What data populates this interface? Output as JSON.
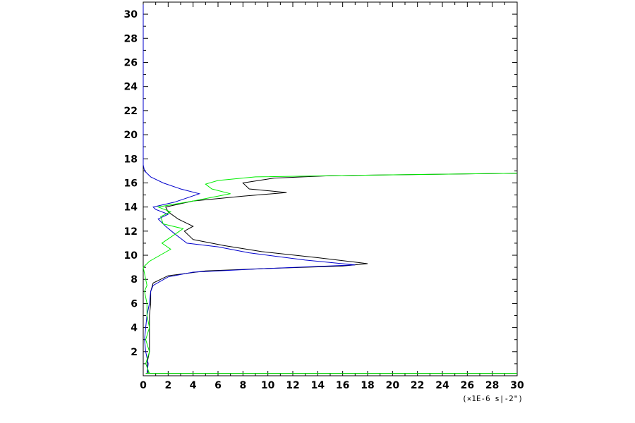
{
  "chart_data": {
    "type": "line",
    "title": "",
    "xlabel": "",
    "ylabel": "",
    "x_unit_note": "(×1E-6 s|-2\")",
    "xlim": [
      0,
      30
    ],
    "ylim": [
      0,
      31
    ],
    "x_ticks": [
      0,
      2,
      4,
      6,
      8,
      10,
      12,
      14,
      16,
      18,
      20,
      22,
      24,
      26,
      28,
      30
    ],
    "y_ticks": [
      2,
      4,
      6,
      8,
      10,
      12,
      14,
      16,
      18,
      20,
      22,
      24,
      26,
      28,
      30
    ],
    "grid": false,
    "legend": "none",
    "series": [
      {
        "color": "#000000",
        "points": [
          [
            0.2,
            0.2
          ],
          [
            30,
            0.2
          ],
          [
            0.4,
            0.2
          ],
          [
            0.3,
            1.0
          ],
          [
            0.5,
            2.0
          ],
          [
            0.5,
            3.0
          ],
          [
            0.5,
            4.0
          ],
          [
            0.5,
            5.0
          ],
          [
            0.6,
            6.0
          ],
          [
            0.6,
            7.0
          ],
          [
            0.8,
            7.7
          ],
          [
            2.0,
            8.3
          ],
          [
            5.0,
            8.7
          ],
          [
            10.0,
            8.9
          ],
          [
            16.0,
            9.1
          ],
          [
            18.0,
            9.3
          ],
          [
            14.0,
            9.8
          ],
          [
            9.5,
            10.3
          ],
          [
            6.5,
            10.8
          ],
          [
            4.0,
            11.3
          ],
          [
            3.3,
            12.0
          ],
          [
            4.0,
            12.4
          ],
          [
            2.8,
            13.0
          ],
          [
            2.0,
            13.6
          ],
          [
            1.8,
            14.0
          ],
          [
            4.0,
            14.5
          ],
          [
            8.0,
            14.9
          ],
          [
            11.5,
            15.2
          ],
          [
            8.5,
            15.5
          ],
          [
            8.0,
            16.0
          ],
          [
            10.5,
            16.4
          ],
          [
            15.0,
            16.6
          ],
          [
            30.0,
            16.8
          ]
        ]
      },
      {
        "color": "#0000cc",
        "points": [
          [
            0.3,
            0.2
          ],
          [
            0.4,
            1.0
          ],
          [
            0.2,
            2.0
          ],
          [
            0.1,
            3.0
          ],
          [
            0.2,
            4.0
          ],
          [
            0.3,
            5.0
          ],
          [
            0.5,
            6.0
          ],
          [
            0.6,
            7.0
          ],
          [
            0.8,
            7.5
          ],
          [
            2.0,
            8.2
          ],
          [
            4.0,
            8.6
          ],
          [
            10.0,
            8.9
          ],
          [
            17.0,
            9.2
          ],
          [
            13.0,
            9.6
          ],
          [
            8.5,
            10.2
          ],
          [
            6.0,
            10.7
          ],
          [
            3.5,
            11.0
          ],
          [
            2.5,
            11.8
          ],
          [
            1.8,
            12.4
          ],
          [
            1.2,
            13.0
          ],
          [
            2.0,
            13.4
          ],
          [
            1.0,
            13.8
          ],
          [
            0.8,
            14.0
          ],
          [
            2.5,
            14.4
          ],
          [
            4.5,
            15.1
          ],
          [
            3.0,
            15.5
          ],
          [
            1.6,
            16.0
          ],
          [
            0.6,
            16.5
          ],
          [
            0.1,
            17.0
          ],
          [
            0.0,
            17.5
          ],
          [
            0.0,
            26.5
          ],
          [
            0.0,
            30.8
          ]
        ]
      },
      {
        "color": "#00ee00",
        "points": [
          [
            0.2,
            0.2
          ],
          [
            30.0,
            0.2
          ],
          [
            0.5,
            0.2
          ],
          [
            0.2,
            1.0
          ],
          [
            0.5,
            2.0
          ],
          [
            0.2,
            3.0
          ],
          [
            0.5,
            4.0
          ],
          [
            0.3,
            5.0
          ],
          [
            0.3,
            6.0
          ],
          [
            0.1,
            7.0
          ],
          [
            0.3,
            7.5
          ],
          [
            0.2,
            8.0
          ],
          [
            0.0,
            9.0
          ],
          [
            0.5,
            9.5
          ],
          [
            2.2,
            10.5
          ],
          [
            1.5,
            11.0
          ],
          [
            3.2,
            12.2
          ],
          [
            1.6,
            12.6
          ],
          [
            1.4,
            13.2
          ],
          [
            2.2,
            13.6
          ],
          [
            1.2,
            14.0
          ],
          [
            4.0,
            14.5
          ],
          [
            7.0,
            15.1
          ],
          [
            5.5,
            15.5
          ],
          [
            5.0,
            15.9
          ],
          [
            6.0,
            16.2
          ],
          [
            9.0,
            16.5
          ],
          [
            15.0,
            16.6
          ],
          [
            30.0,
            16.8
          ]
        ]
      }
    ]
  }
}
